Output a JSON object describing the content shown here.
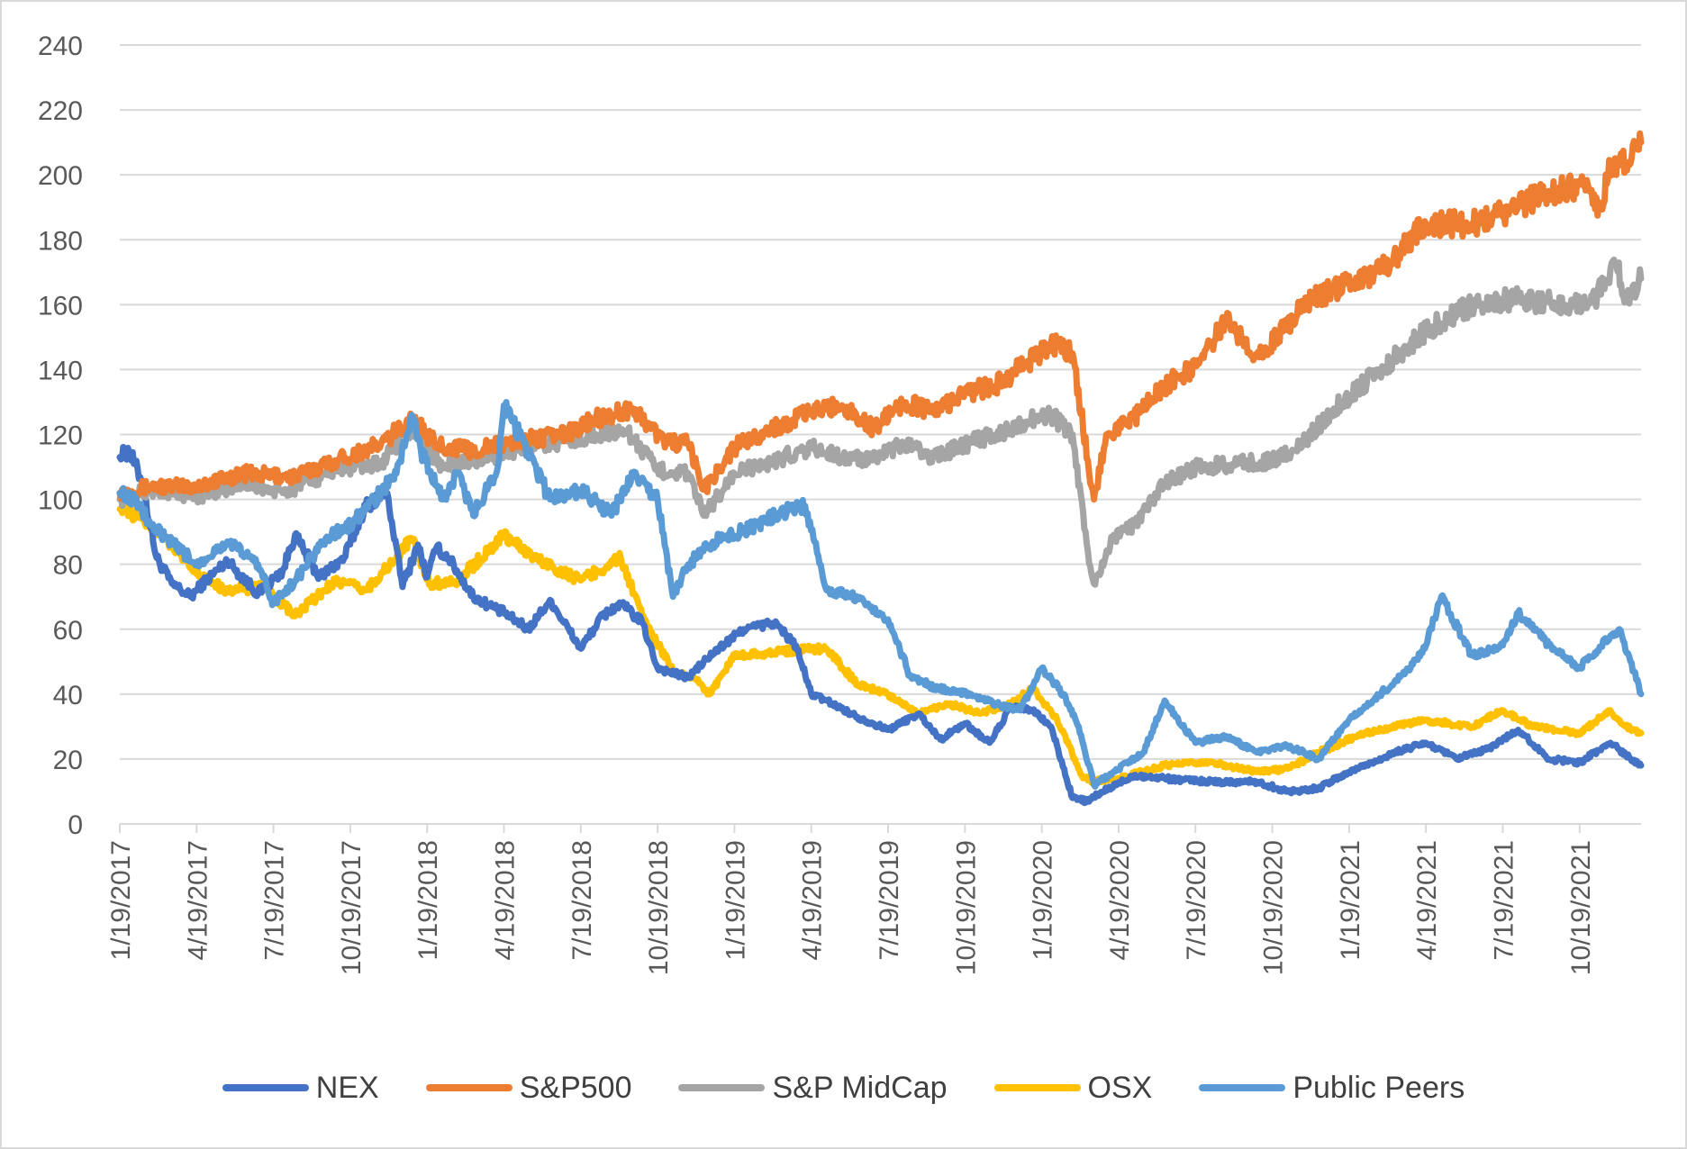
{
  "chart_data": {
    "type": "line",
    "title": "",
    "xlabel": "",
    "ylabel": "",
    "ylim": [
      0,
      240
    ],
    "yticks": [
      "0",
      "20",
      "40",
      "60",
      "80",
      "100",
      "120",
      "140",
      "160",
      "180",
      "200",
      "220",
      "240"
    ],
    "xticks": [
      "1/19/2017",
      "4/19/2017",
      "7/19/2017",
      "10/19/2017",
      "1/19/2018",
      "4/19/2018",
      "7/19/2018",
      "10/19/2018",
      "1/19/2019",
      "4/19/2019",
      "7/19/2019",
      "10/19/2019",
      "1/19/2020",
      "4/19/2020",
      "7/19/2020",
      "10/19/2020",
      "1/19/2021",
      "4/19/2021",
      "7/19/2021",
      "10/19/2021"
    ],
    "x_range_years": [
      2017.05,
      2022.0
    ],
    "grid": true,
    "legend_position": "bottom",
    "series": [
      {
        "name": "NEX",
        "color": "#4472C4",
        "x": [
          2017.05,
          2017.08,
          2017.12,
          2017.17,
          2017.22,
          2017.28,
          2017.33,
          2017.4,
          2017.5,
          2017.58,
          2017.62,
          2017.7,
          2017.78,
          2017.85,
          2017.92,
          2017.97,
          2018.02,
          2018.05,
          2018.08,
          2018.12,
          2018.2,
          2018.3,
          2018.38,
          2018.45,
          2018.55,
          2018.62,
          2018.68,
          2018.75,
          2018.8,
          2018.9,
          2018.95,
          2019.0,
          2019.08,
          2019.18,
          2019.25,
          2019.3,
          2019.35,
          2019.45,
          2019.55,
          2019.65,
          2019.72,
          2019.8,
          2019.88,
          2019.95,
          2020.02,
          2020.08,
          2020.15,
          2020.2,
          2020.25,
          2020.35,
          2020.45,
          2020.6,
          2020.75,
          2020.85,
          2020.95,
          2021.05,
          2021.2,
          2021.3,
          2021.4,
          2021.5,
          2021.6,
          2021.7,
          2021.8,
          2021.9,
          2022.0
        ],
        "y": [
          113,
          115,
          106,
          82,
          74,
          70,
          75,
          81,
          71,
          78,
          89,
          76,
          82,
          98,
          102,
          73,
          86,
          76,
          85,
          82,
          70,
          65,
          60,
          69,
          54,
          64,
          68,
          62,
          48,
          45,
          50,
          54,
          60,
          62,
          55,
          40,
          38,
          33,
          29,
          34,
          26,
          31,
          25,
          36,
          35,
          30,
          8,
          7,
          10,
          15,
          14,
          13,
          13,
          10,
          11,
          16,
          22,
          25,
          20,
          23,
          29,
          20,
          19,
          25,
          18
        ]
      },
      {
        "name": "S&P500",
        "color": "#ED7D31",
        "x": [
          2017.05,
          2017.15,
          2017.3,
          2017.45,
          2017.62,
          2017.75,
          2017.9,
          2018.0,
          2018.08,
          2018.2,
          2018.35,
          2018.5,
          2018.6,
          2018.72,
          2018.82,
          2018.9,
          2018.95,
          2019.05,
          2019.15,
          2019.3,
          2019.4,
          2019.5,
          2019.6,
          2019.7,
          2019.8,
          2019.9,
          2020.0,
          2020.08,
          2020.15,
          2020.2,
          2020.22,
          2020.26,
          2020.35,
          2020.45,
          2020.55,
          2020.65,
          2020.75,
          2020.82,
          2020.9,
          2021.0,
          2021.15,
          2021.3,
          2021.45,
          2021.6,
          2021.7,
          2021.8,
          2021.87,
          2021.9,
          2021.95,
          2022.0
        ],
        "y": [
          102,
          104,
          104,
          108,
          107,
          112,
          117,
          125,
          117,
          115,
          118,
          120,
          125,
          128,
          118,
          117,
          103,
          116,
          121,
          127,
          129,
          122,
          130,
          127,
          133,
          135,
          142,
          148,
          145,
          112,
          100,
          120,
          125,
          135,
          141,
          155,
          145,
          150,
          160,
          165,
          170,
          185,
          185,
          190,
          195,
          197,
          190,
          202,
          204,
          210
        ]
      },
      {
        "name": "S&P MidCap",
        "color": "#A5A5A5",
        "x": [
          2017.05,
          2017.15,
          2017.3,
          2017.45,
          2017.58,
          2017.75,
          2017.9,
          2018.0,
          2018.1,
          2018.2,
          2018.35,
          2018.5,
          2018.6,
          2018.7,
          2018.8,
          2018.9,
          2018.95,
          2019.05,
          2019.15,
          2019.3,
          2019.4,
          2019.5,
          2019.6,
          2019.7,
          2019.8,
          2019.9,
          2020.0,
          2020.08,
          2020.15,
          2020.2,
          2020.22,
          2020.28,
          2020.35,
          2020.45,
          2020.55,
          2020.7,
          2020.8,
          2020.9,
          2021.0,
          2021.15,
          2021.3,
          2021.45,
          2021.6,
          2021.75,
          2021.85,
          2021.92,
          2021.95,
          2022.0
        ],
        "y": [
          100,
          103,
          101,
          105,
          102,
          109,
          111,
          122,
          110,
          112,
          115,
          118,
          120,
          121,
          109,
          108,
          95,
          108,
          111,
          116,
          113,
          112,
          117,
          113,
          117,
          120,
          124,
          126,
          120,
          84,
          74,
          88,
          92,
          105,
          110,
          111,
          112,
          117,
          128,
          140,
          152,
          160,
          162,
          160,
          162,
          172,
          162,
          168
        ]
      },
      {
        "name": "OSX",
        "color": "#FFC000",
        "x": [
          2017.05,
          2017.12,
          2017.2,
          2017.3,
          2017.4,
          2017.52,
          2017.62,
          2017.75,
          2017.85,
          2017.95,
          2018.0,
          2018.06,
          2018.15,
          2018.3,
          2018.4,
          2018.55,
          2018.68,
          2018.75,
          2018.85,
          2018.92,
          2018.97,
          2019.05,
          2019.2,
          2019.3,
          2019.35,
          2019.45,
          2019.55,
          2019.65,
          2019.75,
          2019.85,
          2019.95,
          2020.02,
          2020.1,
          2020.18,
          2020.22,
          2020.3,
          2020.45,
          2020.6,
          2020.75,
          2020.85,
          2020.95,
          2021.1,
          2021.3,
          2021.45,
          2021.55,
          2021.65,
          2021.8,
          2021.9,
          2021.95,
          2022.0
        ],
        "y": [
          97,
          94,
          88,
          77,
          72,
          73,
          64,
          75,
          72,
          82,
          88,
          74,
          75,
          89,
          82,
          75,
          82,
          64,
          47,
          45,
          40,
          52,
          53,
          54,
          54,
          43,
          40,
          34,
          37,
          34,
          37,
          42,
          32,
          15,
          13,
          14,
          18,
          19,
          16,
          17,
          22,
          28,
          32,
          30,
          35,
          30,
          28,
          35,
          30,
          28
        ]
      },
      {
        "name": "Public Peers",
        "color": "#5B9BD5",
        "x": [
          2017.05,
          2017.1,
          2017.15,
          2017.2,
          2017.3,
          2017.4,
          2017.5,
          2017.55,
          2017.62,
          2017.72,
          2017.8,
          2017.88,
          2017.95,
          2018.0,
          2018.03,
          2018.1,
          2018.15,
          2018.2,
          2018.28,
          2018.3,
          2018.35,
          2018.45,
          2018.55,
          2018.65,
          2018.72,
          2018.8,
          2018.85,
          2018.9,
          2018.96,
          2019.0,
          2019.1,
          2019.2,
          2019.28,
          2019.35,
          2019.45,
          2019.55,
          2019.62,
          2019.7,
          2019.82,
          2019.9,
          2019.98,
          2020.05,
          2020.12,
          2020.17,
          2020.22,
          2020.3,
          2020.38,
          2020.45,
          2020.55,
          2020.65,
          2020.75,
          2020.85,
          2020.95,
          2021.05,
          2021.15,
          2021.25,
          2021.3,
          2021.35,
          2021.45,
          2021.55,
          2021.6,
          2021.7,
          2021.8,
          2021.9,
          2021.93,
          2022.0
        ],
        "y": [
          102,
          100,
          92,
          88,
          80,
          87,
          80,
          68,
          75,
          88,
          92,
          100,
          108,
          126,
          115,
          100,
          108,
          95,
          110,
          129,
          120,
          100,
          103,
          95,
          108,
          100,
          70,
          80,
          85,
          88,
          91,
          96,
          98,
          72,
          70,
          63,
          46,
          42,
          40,
          37,
          35,
          48,
          40,
          30,
          12,
          17,
          22,
          38,
          25,
          27,
          22,
          24,
          20,
          32,
          40,
          48,
          55,
          70,
          52,
          55,
          65,
          55,
          48,
          58,
          60,
          40
        ]
      }
    ]
  }
}
